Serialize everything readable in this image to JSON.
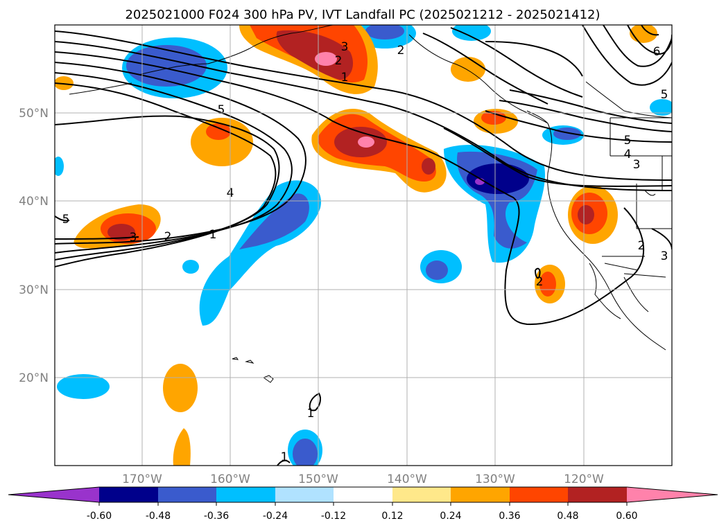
{
  "title": "2025021000 F024 300 hPa PV, IVT Landfall PC (2025021212 - 2025021412)",
  "x_ticks": [
    "170°W",
    "160°W",
    "150°W",
    "140°W",
    "130°W",
    "120°W"
  ],
  "y_ticks": [
    "50°N",
    "40°N",
    "30°N",
    "20°N"
  ],
  "colorbar": {
    "colors": [
      "#9933cc",
      "#00008b",
      "#3a5bcd",
      "#00bfff",
      "#b0e2ff",
      "#ffffff",
      "#ffe88a",
      "#ffa500",
      "#ff4500",
      "#b22222",
      "#ff82ab"
    ],
    "levels": [
      "-0.60",
      "-0.48",
      "-0.36",
      "-0.24",
      "-0.12",
      "0.12",
      "0.24",
      "0.36",
      "0.48",
      "0.60"
    ]
  },
  "contour_labels": [
    "5",
    "4",
    "3",
    "2",
    "1",
    "3",
    "2",
    "1",
    "2",
    "5",
    "4",
    "3",
    "2",
    "2",
    "6",
    "5",
    "1",
    "1",
    "3",
    "5"
  ]
}
